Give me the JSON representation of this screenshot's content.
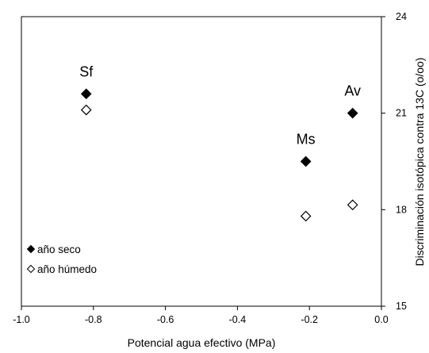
{
  "chart_data": {
    "type": "scatter",
    "xlabel": "Potencial agua efectivo (MPa)",
    "ylabel": "Discriminación isotópica contra 13C (o/oo)",
    "xlim": [
      -1.0,
      0.0
    ],
    "ylim": [
      15,
      24
    ],
    "x_ticks": [
      "-1.0",
      "-0.8",
      "-0.6",
      "-0.4",
      "-0.2",
      "0.0"
    ],
    "y_ticks": [
      "15",
      "18",
      "21",
      "24"
    ],
    "y_axis_side": "right",
    "grid": false,
    "legend_position": "bottom-left",
    "series": [
      {
        "name": "año seco",
        "marker": "filled-diamond",
        "color": "#000000",
        "points": [
          {
            "x": -0.82,
            "y": 21.6,
            "label": "Sf"
          },
          {
            "x": -0.21,
            "y": 19.5,
            "label": "Ms"
          },
          {
            "x": -0.08,
            "y": 21.0,
            "label": "Av"
          }
        ]
      },
      {
        "name": "año húmedo",
        "marker": "open-diamond",
        "color": "#000000",
        "points": [
          {
            "x": -0.82,
            "y": 21.1
          },
          {
            "x": -0.21,
            "y": 17.8
          },
          {
            "x": -0.08,
            "y": 18.15
          }
        ]
      }
    ]
  }
}
